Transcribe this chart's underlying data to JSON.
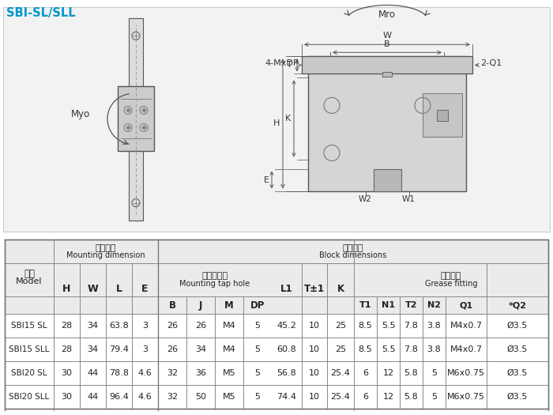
{
  "title": "SBI-SL/SLL",
  "title_color": "#0099cc",
  "bg_color": "#ffffff",
  "diagram_bg": "#f2f2f2",
  "rows": [
    [
      "SBI15 SL",
      "28",
      "34",
      "63.8",
      "3",
      "26",
      "26",
      "M4",
      "5",
      "45.2",
      "10",
      "25",
      "8.5",
      "5.5",
      "7.8",
      "3.8",
      "M4x0.7",
      "Ø3.5"
    ],
    [
      "SBI15 SLL",
      "28",
      "34",
      "79.4",
      "3",
      "26",
      "34",
      "M4",
      "5",
      "60.8",
      "10",
      "25",
      "8.5",
      "5.5",
      "7.8",
      "3.8",
      "M4x0.7",
      "Ø3.5"
    ],
    [
      "SBI20 SL",
      "30",
      "44",
      "78.8",
      "4.6",
      "32",
      "36",
      "M5",
      "5",
      "56.8",
      "10",
      "25.4",
      "6",
      "12",
      "5.8",
      "5",
      "M6x0.75",
      "Ø3.5"
    ],
    [
      "SBI20 SLL",
      "30",
      "44",
      "96.4",
      "4.6",
      "32",
      "50",
      "M5",
      "5",
      "74.4",
      "10",
      "25.4",
      "6",
      "12",
      "5.8",
      "5",
      "M6x0.75",
      "Ø3.5"
    ]
  ]
}
